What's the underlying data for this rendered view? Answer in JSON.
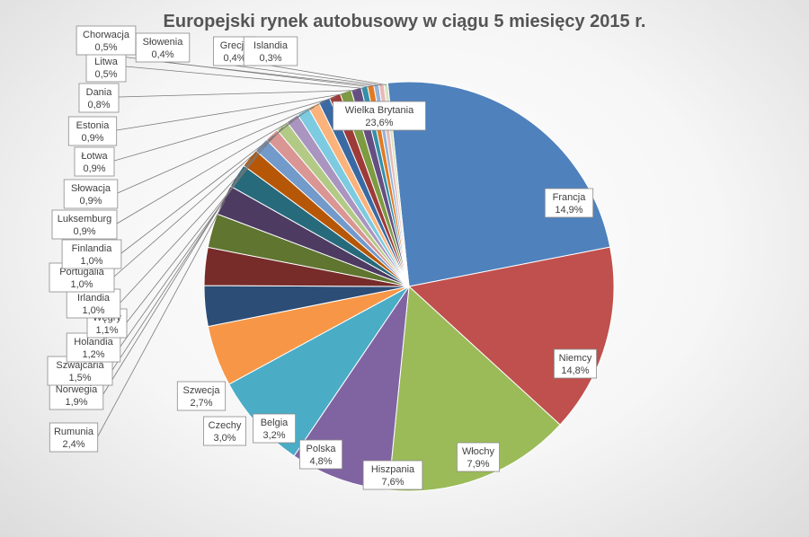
{
  "chart_data": {
    "type": "pie",
    "title": "Europejski rynek autobusowy w ciągu 5 miesięcy 2015 r.",
    "slices": [
      {
        "label": "Wielka Brytania",
        "value": 23.6,
        "display": "23,6%",
        "color": "#4f81bd"
      },
      {
        "label": "Francja",
        "value": 14.9,
        "display": "14,9%",
        "color": "#c0504d"
      },
      {
        "label": "Niemcy",
        "value": 14.8,
        "display": "14,8%",
        "color": "#9bbb59"
      },
      {
        "label": "Włochy",
        "value": 7.9,
        "display": "7,9%",
        "color": "#8064a2"
      },
      {
        "label": "Hiszpania",
        "value": 7.6,
        "display": "7,6%",
        "color": "#4bacc6"
      },
      {
        "label": "Polska",
        "value": 4.8,
        "display": "4,8%",
        "color": "#f79646"
      },
      {
        "label": "Belgia",
        "value": 3.2,
        "display": "3,2%",
        "color": "#2c4d75"
      },
      {
        "label": "Czechy",
        "value": 3.0,
        "display": "3,0%",
        "color": "#772c2a"
      },
      {
        "label": "Szwecja",
        "value": 2.7,
        "display": "2,7%",
        "color": "#5f7530"
      },
      {
        "label": "Rumunia",
        "value": 2.4,
        "display": "2,4%",
        "color": "#4d3b62"
      },
      {
        "label": "Norwegia",
        "value": 1.9,
        "display": "1,9%",
        "color": "#276a7c"
      },
      {
        "label": "Szwajcaria",
        "value": 1.5,
        "display": "1,5%",
        "color": "#b65708"
      },
      {
        "label": "Holandia",
        "value": 1.2,
        "display": "1,2%",
        "color": "#729aca"
      },
      {
        "label": "Węgry",
        "value": 1.1,
        "display": "1,1%",
        "color": "#d99694"
      },
      {
        "label": "Irlandia",
        "value": 1.0,
        "display": "1,0%",
        "color": "#b3ca86"
      },
      {
        "label": "Portugalia",
        "value": 1.0,
        "display": "1,0%",
        "color": "#a995c0"
      },
      {
        "label": "Finlandia",
        "value": 1.0,
        "display": "1,0%",
        "color": "#7dcbe0"
      },
      {
        "label": "Luksemburg",
        "value": 0.9,
        "display": "0,9%",
        "color": "#fbb27b"
      },
      {
        "label": "Słowacja",
        "value": 0.9,
        "display": "0,9%",
        "color": "#3a6aa3"
      },
      {
        "label": "Łotwa",
        "value": 0.9,
        "display": "0,9%",
        "color": "#9e3b38"
      },
      {
        "label": "Estonia",
        "value": 0.9,
        "display": "0,9%",
        "color": "#7d9b41"
      },
      {
        "label": "Dania",
        "value": 0.8,
        "display": "0,8%",
        "color": "#654f82"
      },
      {
        "label": "Litwa",
        "value": 0.5,
        "display": "0,5%",
        "color": "#3490a8"
      },
      {
        "label": "Chorwacja",
        "value": 0.5,
        "display": "0,5%",
        "color": "#e17a23"
      },
      {
        "label": "Słowenia",
        "value": 0.4,
        "display": "0,4%",
        "color": "#95b3d7"
      },
      {
        "label": "Grecja",
        "value": 0.4,
        "display": "0,4%",
        "color": "#e6b9b8"
      },
      {
        "label": "Islandia",
        "value": 0.3,
        "display": "0,3%",
        "color": "#d7e4bd"
      }
    ]
  }
}
